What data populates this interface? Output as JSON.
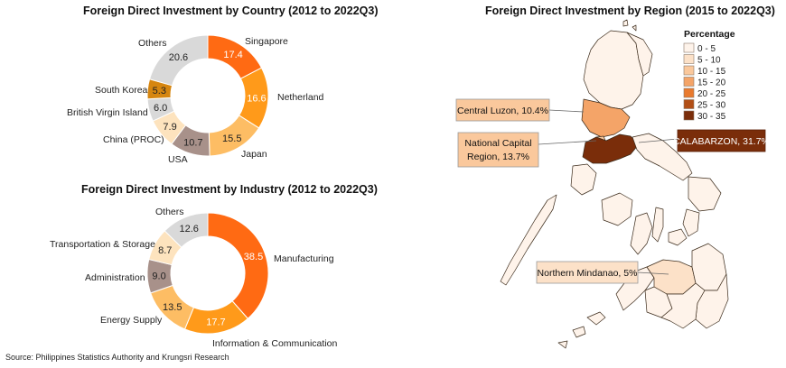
{
  "source": "Source: Philippines Statistics Authority and Krungsri Research",
  "chart_data": [
    {
      "type": "pie",
      "title": "Foreign Direct Investment by Country (2012 to 2022Q3)",
      "categories": [
        "Singapore",
        "Netherland",
        "Japan",
        "USA",
        "China (PROC)",
        "British Virgin Island",
        "South Korea",
        "Others"
      ],
      "values": [
        17.4,
        16.6,
        15.5,
        10.7,
        7.9,
        6.0,
        5.3,
        20.6
      ],
      "value_labels": [
        "17.4",
        "16.6",
        "15.5",
        "10.7",
        "7.9",
        "6.0",
        "5.3",
        "20.6"
      ],
      "colors": [
        "#FF6A13",
        "#FF9A1A",
        "#FDBD64",
        "#A8918A",
        "#FDE3BE",
        "#D9D9D9",
        "#D68610",
        "#D9D9D9"
      ]
    },
    {
      "type": "pie",
      "title": "Foreign Direct Investment by Industry (2012 to 2022Q3)",
      "categories": [
        "Manufacturing",
        "Information & Communication",
        "Energy Supply",
        "Administration",
        "Transportation & Storage",
        "Others"
      ],
      "values": [
        38.5,
        17.7,
        13.5,
        9.0,
        8.7,
        12.6
      ],
      "value_labels": [
        "38.5",
        "17.7",
        "13.5",
        "9.0",
        "8.7",
        "12.6"
      ],
      "colors": [
        "#FF6A13",
        "#FF9A1A",
        "#FDBD64",
        "#A8918A",
        "#FDE3BE",
        "#D9D9D9"
      ]
    }
  ],
  "map": {
    "title": "Foreign Direct Investment by Region (2015 to 2022Q3)",
    "legend_title": "Percentage",
    "legend": [
      {
        "label": "0 - 5",
        "color": "#FEF3EA"
      },
      {
        "label": "5 - 10",
        "color": "#FCE1C8"
      },
      {
        "label": "10 - 15",
        "color": "#FAC89C"
      },
      {
        "label": "15 - 20",
        "color": "#F4A468"
      },
      {
        "label": "20 - 25",
        "color": "#E97A2E"
      },
      {
        "label": "25 - 30",
        "color": "#B24F16"
      },
      {
        "label": "30 - 35",
        "color": "#7A2D0A"
      }
    ],
    "callouts": {
      "central_luzon": "Central Luzon, 10.4%",
      "ncr_line1": "National Capital",
      "ncr_line2": "Region, 13.7%",
      "calabarzon": "CALABARZON, 31.7%",
      "northern_mindanao": "Northern Mindanao, 5%"
    }
  }
}
